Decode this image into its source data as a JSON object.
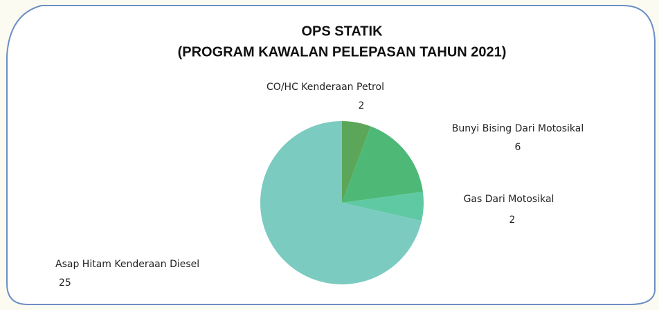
{
  "chart_data": {
    "type": "pie",
    "title": "OPS STATIK",
    "subtitle": "(PROGRAM KAWALAN PELEPASAN TAHUN 2021)",
    "categories": [
      "CO/HC Kenderaan Petrol",
      "Bunyi Bising Dari Motosikal",
      "Gas Dari Motosikal",
      "Asap Hitam Kenderaan Diesel"
    ],
    "values": [
      2,
      6,
      2,
      25
    ],
    "colors": [
      "#5ca65a",
      "#4eb977",
      "#5fc9a4",
      "#7ccbc1"
    ]
  }
}
